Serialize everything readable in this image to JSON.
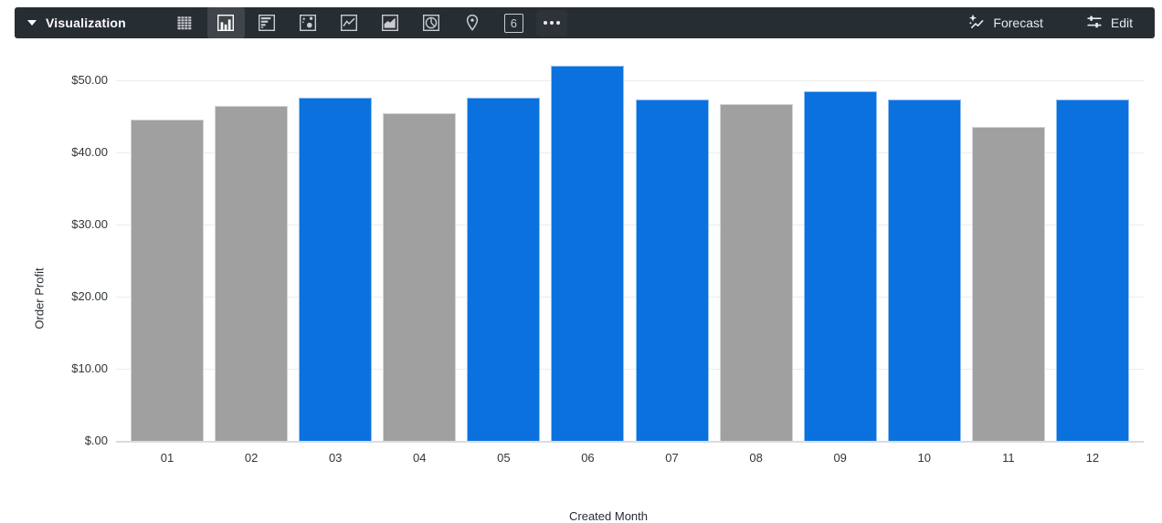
{
  "toolbar": {
    "title": "Visualization",
    "viz_types": [
      {
        "name": "table-icon",
        "selected": false
      },
      {
        "name": "column-chart-icon",
        "selected": true
      },
      {
        "name": "bar-chart-icon",
        "selected": false
      },
      {
        "name": "scatter-chart-icon",
        "selected": false
      },
      {
        "name": "line-chart-icon",
        "selected": false
      },
      {
        "name": "area-chart-icon",
        "selected": false
      },
      {
        "name": "pie-chart-icon",
        "selected": false
      },
      {
        "name": "map-pin-icon",
        "selected": false
      },
      {
        "name": "single-value-icon",
        "selected": false,
        "text": "6"
      },
      {
        "name": "more-viz-types-icon",
        "selected": false
      }
    ],
    "forecast_label": "Forecast",
    "edit_label": "Edit"
  },
  "colors": {
    "toolbar_bg": "#262d33",
    "selected_tile_bg": "#3f454b",
    "accent_blue": "#0a71de",
    "bar_gray": "#a0a0a0",
    "gridline": "#ececec",
    "axis_line": "#d8dce5"
  },
  "chart_data": {
    "type": "bar",
    "title": "",
    "xlabel": "Created Month",
    "ylabel": "Order Profit",
    "categories": [
      "01",
      "02",
      "03",
      "04",
      "05",
      "06",
      "07",
      "08",
      "09",
      "10",
      "11",
      "12"
    ],
    "values": [
      44.5,
      46.5,
      47.6,
      45.5,
      47.6,
      52.0,
      47.3,
      46.7,
      48.5,
      47.3,
      43.6,
      47.3
    ],
    "bar_colors": [
      "gray",
      "gray",
      "blue",
      "gray",
      "blue",
      "blue",
      "blue",
      "gray",
      "blue",
      "blue",
      "gray",
      "blue"
    ],
    "palette": {
      "blue": "#0a71de",
      "gray": "#a0a0a0"
    },
    "y_ticks": [
      {
        "value": 0,
        "label": "$.00"
      },
      {
        "value": 10,
        "label": "$10.00"
      },
      {
        "value": 20,
        "label": "$20.00"
      },
      {
        "value": 30,
        "label": "$30.00"
      },
      {
        "value": 40,
        "label": "$40.00"
      },
      {
        "value": 50,
        "label": "$50.00"
      }
    ],
    "ylim": [
      0,
      50
    ],
    "grid": true,
    "legend": false
  }
}
